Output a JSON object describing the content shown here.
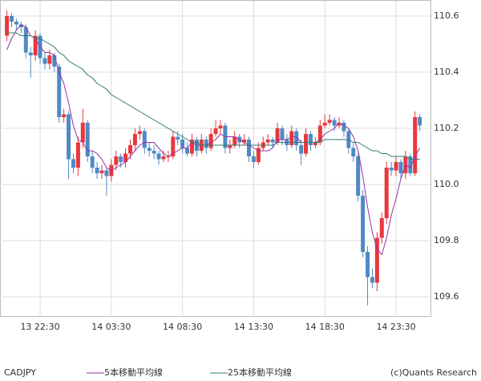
{
  "chart_data": {
    "type": "candlestick",
    "symbol": "CADJPY",
    "copyright": "(c)Quants Research",
    "categories": [
      null,
      null,
      null,
      null,
      null,
      null,
      null,
      "13 22:30",
      null,
      null,
      null,
      null,
      null,
      null,
      null,
      null,
      null,
      null,
      null,
      null,
      null,
      null,
      "14 03:30",
      null,
      null,
      null,
      null,
      null,
      null,
      null,
      null,
      null,
      null,
      null,
      null,
      null,
      null,
      "14 08:30",
      null,
      null,
      null,
      null,
      null,
      null,
      null,
      null,
      null,
      null,
      null,
      null,
      null,
      null,
      "14 13:30",
      null,
      null,
      null,
      null,
      null,
      null,
      null,
      null,
      null,
      null,
      null,
      null,
      null,
      null,
      "14 18:30",
      null,
      null,
      null,
      null,
      null,
      null,
      null,
      null,
      null,
      null,
      null,
      null,
      null,
      null,
      "14 23:30",
      null,
      null,
      null,
      null,
      null
    ],
    "open": [
      110.53,
      110.6,
      110.58,
      110.57,
      110.56,
      110.47,
      110.46,
      110.53,
      110.45,
      110.43,
      110.46,
      110.42,
      110.24,
      110.25,
      110.09,
      110.06,
      110.15,
      110.22,
      110.1,
      110.06,
      110.04,
      110.05,
      110.03,
      110.07,
      110.1,
      110.08,
      110.11,
      110.14,
      110.18,
      110.19,
      110.13,
      110.12,
      110.11,
      110.09,
      110.1,
      110.1,
      110.17,
      110.16,
      110.13,
      110.11,
      110.16,
      110.12,
      110.16,
      110.13,
      110.18,
      110.2,
      110.21,
      110.13,
      110.14,
      110.17,
      110.15,
      110.16,
      110.1,
      110.08,
      110.13,
      110.15,
      110.16,
      110.15,
      110.2,
      110.16,
      110.14,
      110.19,
      110.14,
      110.11,
      110.18,
      110.14,
      110.15,
      110.21,
      110.22,
      110.23,
      110.21,
      110.22,
      110.19,
      110.13,
      110.1,
      109.96,
      109.76,
      109.67,
      109.65,
      109.81,
      109.88,
      110.06,
      110.05,
      110.08,
      110.04,
      110.1,
      110.04,
      110.24
    ],
    "high": [
      110.62,
      110.61,
      110.59,
      110.58,
      110.57,
      110.49,
      110.55,
      110.54,
      110.47,
      110.48,
      110.47,
      110.43,
      110.27,
      110.26,
      110.11,
      110.17,
      110.27,
      110.23,
      110.12,
      110.08,
      110.07,
      110.06,
      110.09,
      110.12,
      110.11,
      110.13,
      110.16,
      110.2,
      110.21,
      110.2,
      110.15,
      110.14,
      110.12,
      110.12,
      110.12,
      110.19,
      110.19,
      110.18,
      110.15,
      110.18,
      110.17,
      110.18,
      110.17,
      110.2,
      110.23,
      110.23,
      110.22,
      110.16,
      110.19,
      110.18,
      110.18,
      110.17,
      110.12,
      110.15,
      110.17,
      110.18,
      110.17,
      110.22,
      110.21,
      110.18,
      110.21,
      110.2,
      110.16,
      110.2,
      110.19,
      110.17,
      110.23,
      110.25,
      110.25,
      110.24,
      110.24,
      110.23,
      110.2,
      110.15,
      110.11,
      109.98,
      109.78,
      109.7,
      109.83,
      109.9,
      110.08,
      110.08,
      110.1,
      110.09,
      110.12,
      110.11,
      110.26,
      110.25
    ],
    "low": [
      110.51,
      110.56,
      110.55,
      110.54,
      110.45,
      110.38,
      110.44,
      110.43,
      110.41,
      110.41,
      110.4,
      110.22,
      110.22,
      110.02,
      110.04,
      110.03,
      110.13,
      110.08,
      110.04,
      110.02,
      110.02,
      109.96,
      110.01,
      110.05,
      110.06,
      110.06,
      110.09,
      110.12,
      110.16,
      110.11,
      110.1,
      110.09,
      110.07,
      110.08,
      110.08,
      110.09,
      110.14,
      110.11,
      110.1,
      110.1,
      110.1,
      110.11,
      110.11,
      110.12,
      110.17,
      110.18,
      110.11,
      110.11,
      110.13,
      110.13,
      110.14,
      110.08,
      110.06,
      110.07,
      110.12,
      110.14,
      110.13,
      110.14,
      110.14,
      110.12,
      110.13,
      110.12,
      110.07,
      110.1,
      110.12,
      110.13,
      110.14,
      110.2,
      110.21,
      110.19,
      110.2,
      110.17,
      110.11,
      110.08,
      109.94,
      109.74,
      109.57,
      109.63,
      109.62,
      109.79,
      109.86,
      110.03,
      110.03,
      110.02,
      110.02,
      110.03,
      110.03,
      110.19
    ],
    "close": [
      110.6,
      110.58,
      110.57,
      110.56,
      110.47,
      110.46,
      110.53,
      110.45,
      110.43,
      110.46,
      110.42,
      110.24,
      110.25,
      110.09,
      110.06,
      110.15,
      110.22,
      110.1,
      110.06,
      110.04,
      110.05,
      110.03,
      110.07,
      110.1,
      110.08,
      110.11,
      110.14,
      110.18,
      110.19,
      110.13,
      110.12,
      110.11,
      110.09,
      110.1,
      110.1,
      110.17,
      110.16,
      110.13,
      110.11,
      110.16,
      110.12,
      110.16,
      110.13,
      110.18,
      110.2,
      110.21,
      110.13,
      110.14,
      110.17,
      110.15,
      110.16,
      110.1,
      110.08,
      110.13,
      110.15,
      110.16,
      110.15,
      110.2,
      110.16,
      110.14,
      110.19,
      110.14,
      110.11,
      110.18,
      110.14,
      110.15,
      110.21,
      110.22,
      110.23,
      110.21,
      110.22,
      110.19,
      110.13,
      110.1,
      109.96,
      109.76,
      109.67,
      109.65,
      109.81,
      109.88,
      110.06,
      110.05,
      110.08,
      110.04,
      110.1,
      110.04,
      110.24,
      110.21
    ],
    "up_color": "#e8383d",
    "down_color": "#4f8ac4",
    "series": [
      {
        "name": "5本移動平均線",
        "color": "#9b30a3",
        "values": [
          110.48,
          110.52,
          110.55,
          110.57,
          110.56,
          110.53,
          110.52,
          110.49,
          110.47,
          110.47,
          110.46,
          110.4,
          110.36,
          110.29,
          110.21,
          110.16,
          110.15,
          110.12,
          110.12,
          110.11,
          110.09,
          110.06,
          110.05,
          110.06,
          110.07,
          110.08,
          110.1,
          110.12,
          110.14,
          110.15,
          110.15,
          110.15,
          110.13,
          110.11,
          110.1,
          110.11,
          110.12,
          110.13,
          110.13,
          110.15,
          110.14,
          110.14,
          110.14,
          110.15,
          110.16,
          110.18,
          110.17,
          110.17,
          110.17,
          110.16,
          110.15,
          110.14,
          110.13,
          110.12,
          110.12,
          110.12,
          110.13,
          110.16,
          110.16,
          110.16,
          110.17,
          110.17,
          110.15,
          110.15,
          110.15,
          110.15,
          110.16,
          110.18,
          110.19,
          110.2,
          110.22,
          110.21,
          110.2,
          110.17,
          110.12,
          110.03,
          109.92,
          109.83,
          109.77,
          109.75,
          109.81,
          109.89,
          109.95,
          110.02,
          110.07,
          110.06,
          110.1,
          110.13
        ]
      },
      {
        "name": "25本移動平均線",
        "color": "#2f7a6c",
        "values": [
          110.54,
          110.54,
          110.54,
          110.53,
          110.53,
          110.53,
          110.52,
          110.52,
          110.51,
          110.5,
          110.49,
          110.47,
          110.46,
          110.44,
          110.43,
          110.42,
          110.41,
          110.39,
          110.38,
          110.36,
          110.35,
          110.34,
          110.32,
          110.31,
          110.3,
          110.29,
          110.28,
          110.27,
          110.26,
          110.25,
          110.24,
          110.23,
          110.22,
          110.21,
          110.2,
          110.19,
          110.18,
          110.17,
          110.16,
          110.15,
          110.15,
          110.14,
          110.14,
          110.14,
          110.14,
          110.14,
          110.14,
          110.14,
          110.14,
          110.14,
          110.14,
          110.14,
          110.14,
          110.14,
          110.14,
          110.14,
          110.14,
          110.15,
          110.15,
          110.15,
          110.15,
          110.15,
          110.15,
          110.15,
          110.15,
          110.15,
          110.15,
          110.16,
          110.16,
          110.16,
          110.16,
          110.16,
          110.16,
          110.15,
          110.15,
          110.14,
          110.13,
          110.12,
          110.12,
          110.11,
          110.11,
          110.1,
          110.1,
          110.1,
          110.1,
          110.09,
          110.09,
          110.09
        ]
      }
    ],
    "ylim": [
      109.53,
      110.64
    ],
    "yticks": [
      109.6,
      109.8,
      {
        "value": 110,
        "label": "110.0"
      },
      110.2,
      110.4,
      110.6
    ],
    "grid": true
  }
}
